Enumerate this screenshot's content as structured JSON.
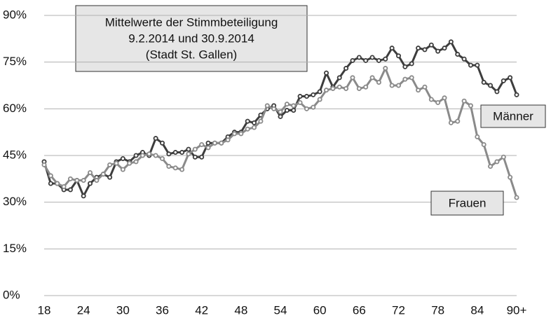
{
  "chart_data": {
    "type": "line",
    "title": [
      "Mittelwerte der Stimmbeteiligung",
      "9.2.2014 und 30.9.2014",
      "(Stadt St. Gallen)"
    ],
    "categories": [
      "18",
      null,
      null,
      null,
      null,
      null,
      "24",
      null,
      null,
      null,
      null,
      null,
      "30",
      null,
      null,
      null,
      null,
      null,
      "36",
      null,
      null,
      null,
      null,
      null,
      "42",
      null,
      null,
      null,
      null,
      null,
      "48",
      null,
      null,
      null,
      null,
      null,
      "54",
      null,
      null,
      null,
      null,
      null,
      "60",
      null,
      null,
      null,
      null,
      null,
      "66",
      null,
      null,
      null,
      null,
      null,
      "72",
      null,
      null,
      null,
      null,
      null,
      "78",
      null,
      null,
      null,
      null,
      null,
      "84",
      null,
      null,
      null,
      null,
      null,
      "90+"
    ],
    "series": [
      {
        "name": "Männer",
        "color": "#3d3d3d",
        "values": [
          43,
          36,
          36,
          34,
          34,
          37,
          32,
          36,
          38,
          39,
          38,
          43,
          44,
          43,
          45,
          46,
          45,
          50.5,
          49,
          45.5,
          46,
          46,
          47,
          44.5,
          44.5,
          49,
          49,
          49,
          51,
          52.5,
          52.5,
          56,
          55.5,
          58,
          60,
          61,
          57.5,
          59.5,
          59.5,
          64,
          64,
          64.5,
          65.5,
          71.5,
          67,
          70,
          73,
          75.5,
          76.5,
          75.5,
          76.5,
          75.5,
          76,
          79.5,
          77,
          73.5,
          74.5,
          79.5,
          79,
          80.5,
          78.5,
          79.5,
          81.5,
          77.5,
          76,
          74,
          74,
          68.5,
          67.5,
          65.5,
          69,
          70,
          64.5
        ]
      },
      {
        "name": "Frauen",
        "color": "#8a8a8a",
        "values": [
          42,
          38.5,
          36,
          35,
          37.5,
          37,
          37,
          39.5,
          37,
          39,
          42,
          42.5,
          40.5,
          42.5,
          43,
          45,
          45.5,
          45,
          44,
          41.5,
          41,
          40.5,
          45.5,
          47,
          48.5,
          47.5,
          49,
          49,
          50,
          52,
          52,
          53.5,
          54,
          56,
          61,
          60,
          59,
          61.5,
          61,
          62,
          60,
          60.5,
          63,
          66,
          66.5,
          67,
          66.5,
          70,
          66.5,
          67,
          70,
          68.5,
          73,
          67.5,
          67.5,
          69.5,
          70,
          66,
          67,
          63,
          62,
          63.5,
          55.5,
          56,
          62.5,
          61,
          51,
          48.5,
          41.5,
          43,
          44.5,
          38,
          31.5
        ]
      }
    ],
    "ylim": [
      0,
      90
    ],
    "yticks": [
      {
        "value": 0,
        "label": "0%"
      },
      {
        "value": 15,
        "label": "15%"
      },
      {
        "value": 30,
        "label": "30%"
      },
      {
        "value": 45,
        "label": "45%"
      },
      {
        "value": 60,
        "label": "60%"
      },
      {
        "value": 75,
        "label": "75%"
      },
      {
        "value": 90,
        "label": "90%"
      }
    ],
    "grid": true
  }
}
